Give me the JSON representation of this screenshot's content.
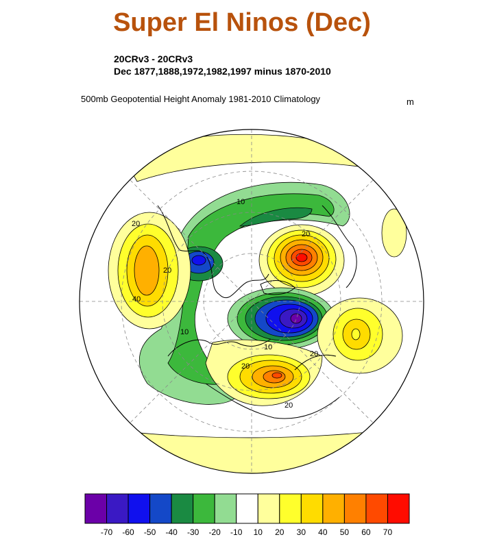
{
  "title": "Super El Ninos (Dec)",
  "subtitle_line1": "20CRv3 - 20CRv3",
  "subtitle_line2": "Dec 1877,1888,1972,1982,1997 minus 1870-2010",
  "variable_line": "500mb Geopotential Height Anomaly  1981-2010 Climatology",
  "units": "m",
  "map": {
    "projection": "north-polar-stereographic",
    "contour_labels": [
      "20",
      "40",
      "20",
      "10",
      "20",
      "20",
      "10",
      "20",
      "10",
      "20"
    ]
  },
  "colorbar": {
    "colors": [
      "#6b00a8",
      "#3a19c4",
      "#1010ee",
      "#1448c8",
      "#1a8a42",
      "#3cb83c",
      "#92dc92",
      "#ffffff",
      "#ffff9c",
      "#ffff2c",
      "#ffdc00",
      "#ffb000",
      "#ff8000",
      "#ff4a00",
      "#ff0c00"
    ],
    "tick_labels": [
      "-70",
      "-60",
      "-50",
      "-40",
      "-30",
      "-20",
      "-10",
      "10",
      "20",
      "30",
      "40",
      "50",
      "60",
      "70"
    ]
  }
}
